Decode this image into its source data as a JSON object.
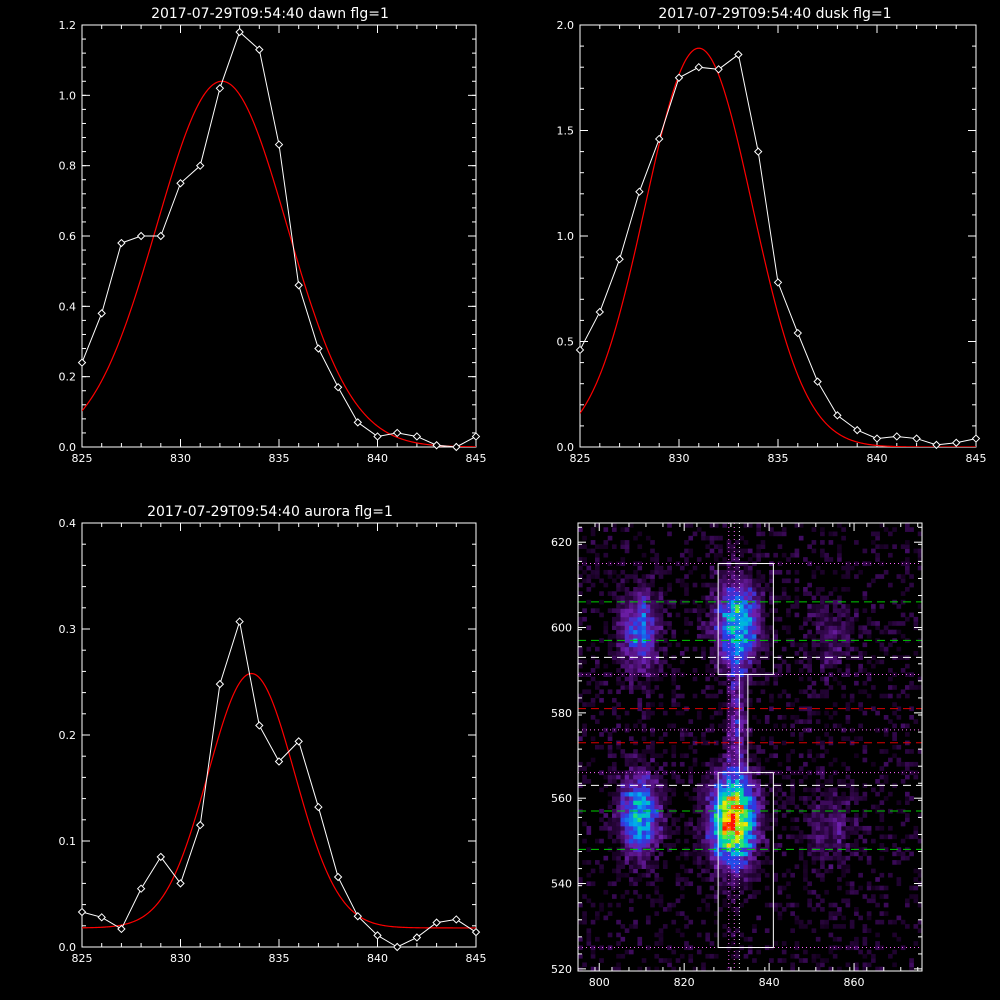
{
  "panels": [
    {
      "id": "dawn",
      "chart_data": {
        "type": "line",
        "title": "2017-07-29T09:54:40 dawn flg=1",
        "xlabel": "",
        "ylabel": "",
        "xlim": [
          825,
          845
        ],
        "ylim": [
          0,
          1.2
        ],
        "xticks": [
          "825",
          "830",
          "835",
          "840",
          "845"
        ],
        "yticks": [
          "0.0",
          "0.2",
          "0.4",
          "0.6",
          "0.8",
          "1.0",
          "1.2"
        ],
        "x": [
          825,
          826,
          827,
          828,
          829,
          830,
          831,
          832,
          833,
          834,
          835,
          836,
          837,
          838,
          839,
          840,
          841,
          842,
          843,
          844,
          845
        ],
        "series": [
          {
            "kind": "observed",
            "color": "#ffffff",
            "marker": "diamond",
            "values": [
              0.24,
              0.38,
              0.58,
              0.6,
              0.6,
              0.75,
              0.8,
              1.02,
              1.18,
              1.13,
              0.86,
              0.46,
              0.28,
              0.17,
              0.07,
              0.03,
              0.04,
              0.03,
              0.005,
              0.0,
              0.03
            ]
          },
          {
            "kind": "fit",
            "color": "#ff0000",
            "model": "gaussian",
            "amplitude": 1.04,
            "center": 832.1,
            "sigma": 3.3,
            "offset": 0.0
          }
        ]
      }
    },
    {
      "id": "dusk",
      "chart_data": {
        "type": "line",
        "title": "2017-07-29T09:54:40 dusk flg=1",
        "xlabel": "",
        "ylabel": "",
        "xlim": [
          825,
          845
        ],
        "ylim": [
          0,
          2.0
        ],
        "xticks": [
          "825",
          "830",
          "835",
          "840",
          "845"
        ],
        "yticks": [
          "0.0",
          "0.5",
          "1.0",
          "1.5",
          "2.0"
        ],
        "x": [
          825,
          826,
          827,
          828,
          829,
          830,
          831,
          832,
          833,
          834,
          835,
          836,
          837,
          838,
          839,
          840,
          841,
          842,
          843,
          844,
          845
        ],
        "series": [
          {
            "kind": "observed",
            "color": "#ffffff",
            "marker": "diamond",
            "values": [
              0.46,
              0.64,
              0.89,
              1.21,
              1.46,
              1.75,
              1.8,
              1.79,
              1.86,
              1.4,
              0.78,
              0.54,
              0.31,
              0.15,
              0.08,
              0.04,
              0.05,
              0.04,
              0.01,
              0.02,
              0.04
            ]
          },
          {
            "kind": "fit",
            "color": "#ff0000",
            "model": "gaussian",
            "amplitude": 1.89,
            "center": 831.0,
            "sigma": 2.7,
            "offset": 0.0
          }
        ]
      }
    },
    {
      "id": "aurora",
      "chart_data": {
        "type": "line",
        "title": "2017-07-29T09:54:40 aurora flg=1",
        "xlabel": "",
        "ylabel": "",
        "xlim": [
          825,
          845
        ],
        "ylim": [
          0,
          0.4
        ],
        "xticks": [
          "825",
          "830",
          "835",
          "840",
          "845"
        ],
        "yticks": [
          "0.0",
          "0.1",
          "0.2",
          "0.3",
          "0.4"
        ],
        "x": [
          825,
          826,
          827,
          828,
          829,
          830,
          831,
          832,
          833,
          834,
          835,
          836,
          837,
          838,
          839,
          840,
          841,
          842,
          843,
          844,
          845
        ],
        "series": [
          {
            "kind": "observed",
            "color": "#ffffff",
            "marker": "diamond",
            "values": [
              0.033,
              0.028,
              0.017,
              0.055,
              0.085,
              0.06,
              0.115,
              0.248,
              0.307,
              0.209,
              0.175,
              0.194,
              0.132,
              0.066,
              0.029,
              0.011,
              0.0,
              0.009,
              0.023,
              0.026,
              0.014
            ]
          },
          {
            "kind": "fit",
            "color": "#ff0000",
            "model": "gaussian",
            "amplitude": 0.24,
            "center": 833.6,
            "sigma": 2.2,
            "offset": 0.018
          }
        ]
      }
    },
    {
      "id": "image",
      "chart_data": {
        "type": "heatmap",
        "title": "",
        "xlabel": "",
        "ylabel": "",
        "xlim": [
          795,
          876
        ],
        "ylim": [
          519.5,
          624.5
        ],
        "xticks": [
          "800",
          "820",
          "840",
          "860"
        ],
        "yticks": [
          "520",
          "540",
          "560",
          "580",
          "600",
          "620"
        ],
        "colormap": "rainbow-on-purple",
        "blobs": [
          {
            "x": 809,
            "y": 599,
            "sx": 3.0,
            "sy": 6.5,
            "amp": 0.42
          },
          {
            "x": 809,
            "y": 556,
            "sx": 3.2,
            "sy": 6.5,
            "amp": 0.55
          },
          {
            "x": 832,
            "y": 601,
            "sx": 3.5,
            "sy": 7.0,
            "amp": 0.58
          },
          {
            "x": 831,
            "y": 555,
            "sx": 3.6,
            "sy": 7.0,
            "amp": 0.95
          },
          {
            "x": 832,
            "y": 578,
            "sx": 1.5,
            "sy": 9.0,
            "amp": 0.25
          },
          {
            "x": 854,
            "y": 553,
            "sx": 4.0,
            "sy": 6.0,
            "amp": 0.16
          },
          {
            "x": 854,
            "y": 598,
            "sx": 4.0,
            "sy": 6.0,
            "amp": 0.13
          }
        ],
        "boxes": [
          {
            "x0": 828,
            "x1": 841,
            "y0": 589,
            "y1": 615,
            "color": "#ffffff"
          },
          {
            "x0": 833,
            "x1": 835,
            "y0": 566,
            "y1": 589,
            "color": "#ffffff"
          },
          {
            "x0": 828,
            "x1": 841,
            "y0": 525,
            "y1": 566,
            "color": "#ffffff"
          }
        ],
        "hlines": [
          {
            "y": 615,
            "color": "#ff66ff",
            "style": "dotted"
          },
          {
            "y": 606,
            "color": "#00cc00",
            "style": "dashed"
          },
          {
            "y": 597,
            "color": "#00cc00",
            "style": "dashed"
          },
          {
            "y": 593,
            "color": "#ffffff",
            "style": "dashed"
          },
          {
            "y": 589,
            "color": "#ff66ff",
            "style": "dotted"
          },
          {
            "y": 581,
            "color": "#dd0000",
            "style": "dashed"
          },
          {
            "y": 576,
            "color": "#ff66ff",
            "style": "dotted"
          },
          {
            "y": 573,
            "color": "#dd0000",
            "style": "dashed"
          },
          {
            "y": 566,
            "color": "#ff66ff",
            "style": "dotted"
          },
          {
            "y": 563,
            "color": "#ffffff",
            "style": "dashed"
          },
          {
            "y": 557,
            "color": "#00cc00",
            "style": "dashed"
          },
          {
            "y": 548,
            "color": "#00cc00",
            "style": "dashed"
          },
          {
            "y": 525,
            "color": "#ff66ff",
            "style": "dotted"
          }
        ],
        "vlines": [
          {
            "x": 830.5,
            "color": "#ff66ff",
            "style": "dotted"
          },
          {
            "x": 831.8,
            "color": "#ff66ff",
            "style": "dotted"
          },
          {
            "x": 833.0,
            "color": "#ffffff",
            "style": "dotted"
          }
        ]
      }
    }
  ]
}
